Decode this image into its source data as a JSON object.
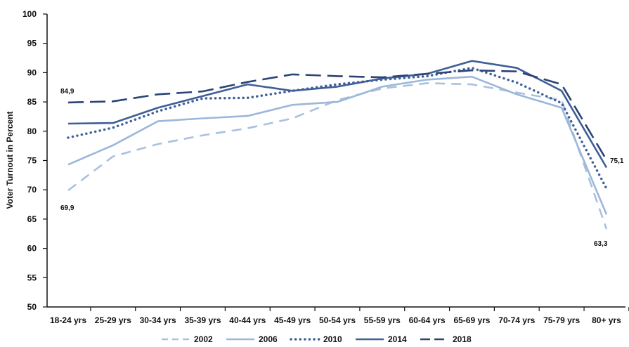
{
  "chart_data": {
    "type": "line",
    "title": "",
    "xlabel": "",
    "ylabel": "Voter Turnout in Percent",
    "ylim": [
      50,
      100
    ],
    "yticks": [
      50,
      55,
      60,
      65,
      70,
      75,
      80,
      85,
      90,
      95,
      100
    ],
    "grid": false,
    "legend_position": "bottom",
    "categories": [
      "18-24 yrs",
      "25-29 yrs",
      "30-34 yrs",
      "35-39 yrs",
      "40-44 yrs",
      "45-49 yrs",
      "50-54 yrs",
      "55-59 yrs",
      "60-64 yrs",
      "65-69 yrs",
      "70-74 yrs",
      "75-79 yrs",
      "80+ yrs"
    ],
    "series": [
      {
        "name": "2002",
        "values": [
          69.9,
          75.7,
          77.8,
          79.3,
          80.5,
          82.2,
          85.3,
          87.3,
          88.2,
          88.0,
          86.6,
          85.3,
          63.3
        ],
        "color": "#a9c1df",
        "style": "dashed"
      },
      {
        "name": "2006",
        "values": [
          74.3,
          77.6,
          81.7,
          82.2,
          82.6,
          84.5,
          85.0,
          87.6,
          88.8,
          89.3,
          86.3,
          84.0,
          65.8
        ],
        "color": "#9bb7da",
        "style": "solid"
      },
      {
        "name": "2010",
        "values": [
          78.9,
          80.6,
          83.4,
          85.6,
          85.7,
          86.9,
          88.0,
          88.8,
          89.4,
          90.8,
          88.3,
          84.8,
          70.2
        ],
        "color": "#3e5f97",
        "style": "dotted"
      },
      {
        "name": "2014",
        "values": [
          81.3,
          81.4,
          84.0,
          86.0,
          88.0,
          86.9,
          87.6,
          89.0,
          89.8,
          92.0,
          90.8,
          86.9,
          73.8
        ],
        "color": "#3e5f97",
        "style": "solid"
      },
      {
        "name": "2018",
        "values": [
          84.9,
          85.1,
          86.3,
          86.8,
          88.4,
          89.7,
          89.4,
          89.2,
          89.8,
          90.4,
          90.2,
          88.0,
          75.1
        ],
        "color": "#2b4475",
        "style": "longdash"
      }
    ],
    "annotations": [
      "84,9",
      "69,9",
      "75,1",
      "63,3"
    ]
  }
}
